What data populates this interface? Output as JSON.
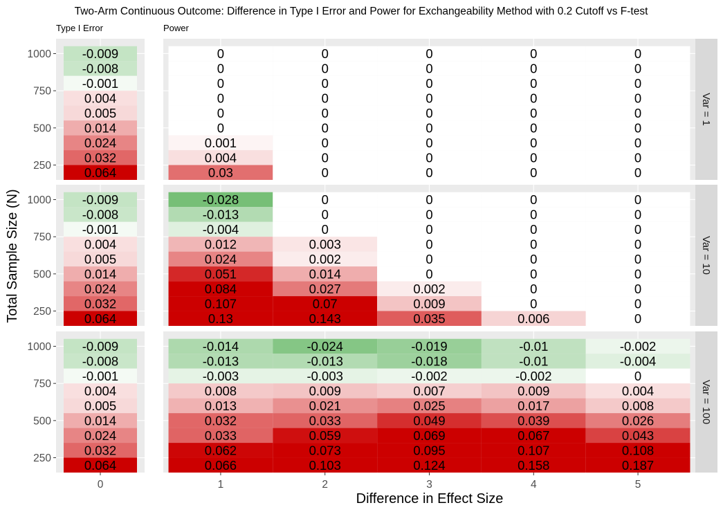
{
  "chart_data": {
    "type": "heatmap",
    "title": "Two-Arm Continuous Outcome: Difference in Type I Error and Power for Exchangeability Method with 0.2 Cutoff vs F-test",
    "xlabel": "Difference in Effect Size",
    "ylabel": "Total Sample Size (N)",
    "left_panel_label": "Type I Error",
    "right_panel_label": "Power",
    "x_type1": [
      0
    ],
    "x_power": [
      1,
      2,
      3,
      4,
      5
    ],
    "y_ticks": [
      250,
      500,
      750,
      1000
    ],
    "ylim": [
      150,
      1100
    ],
    "color_scale": {
      "low": "#008800",
      "mid": "#ffffff",
      "high": "#cc0000",
      "limit": 0.064
    },
    "rows_n": [
      1000,
      900,
      800,
      700,
      600,
      500,
      400,
      300,
      200
    ],
    "panels": [
      {
        "strip": "Var = 1",
        "type1": [
          "-0.009",
          "-0.008",
          "-0.001",
          "0.004",
          "0.005",
          "0.014",
          "0.024",
          "0.032",
          "0.064"
        ],
        "power": [
          [
            "0",
            "0",
            "0",
            "0",
            "0"
          ],
          [
            "0",
            "0",
            "0",
            "0",
            "0"
          ],
          [
            "0",
            "0",
            "0",
            "0",
            "0"
          ],
          [
            "0",
            "0",
            "0",
            "0",
            "0"
          ],
          [
            "0",
            "0",
            "0",
            "0",
            "0"
          ],
          [
            "0",
            "0",
            "0",
            "0",
            "0"
          ],
          [
            "0.001",
            "0",
            "0",
            "0",
            "0"
          ],
          [
            "0.004",
            "0",
            "0",
            "0",
            "0"
          ],
          [
            "0.03",
            "0",
            "0",
            "0",
            "0"
          ]
        ]
      },
      {
        "strip": "Var = 10",
        "type1": [
          "-0.009",
          "-0.008",
          "-0.001",
          "0.004",
          "0.005",
          "0.014",
          "0.024",
          "0.032",
          "0.064"
        ],
        "power": [
          [
            "-0.028",
            "0",
            "0",
            "0",
            "0"
          ],
          [
            "-0.013",
            "0",
            "0",
            "0",
            "0"
          ],
          [
            "-0.004",
            "0",
            "0",
            "0",
            "0"
          ],
          [
            "0.012",
            "0.003",
            "0",
            "0",
            "0"
          ],
          [
            "0.024",
            "0.002",
            "0",
            "0",
            "0"
          ],
          [
            "0.051",
            "0.014",
            "0",
            "0",
            "0"
          ],
          [
            "0.084",
            "0.027",
            "0.002",
            "0",
            "0"
          ],
          [
            "0.107",
            "0.07",
            "0.009",
            "0",
            "0"
          ],
          [
            "0.13",
            "0.143",
            "0.035",
            "0.006",
            "0"
          ]
        ]
      },
      {
        "strip": "Var = 100",
        "type1": [
          "-0.009",
          "-0.008",
          "-0.001",
          "0.004",
          "0.005",
          "0.014",
          "0.024",
          "0.032",
          "0.064"
        ],
        "power": [
          [
            "-0.014",
            "-0.024",
            "-0.019",
            "-0.01",
            "-0.002"
          ],
          [
            "-0.013",
            "-0.013",
            "-0.018",
            "-0.01",
            "-0.004"
          ],
          [
            "-0.003",
            "-0.003",
            "-0.002",
            "-0.002",
            "0"
          ],
          [
            "0.008",
            "0.009",
            "0.007",
            "0.009",
            "0.004"
          ],
          [
            "0.013",
            "0.021",
            "0.025",
            "0.017",
            "0.008"
          ],
          [
            "0.032",
            "0.033",
            "0.049",
            "0.039",
            "0.026"
          ],
          [
            "0.033",
            "0.059",
            "0.069",
            "0.067",
            "0.043"
          ],
          [
            "0.062",
            "0.073",
            "0.095",
            "0.107",
            "0.108"
          ],
          [
            "0.066",
            "0.103",
            "0.124",
            "0.158",
            "0.187"
          ]
        ]
      }
    ]
  }
}
